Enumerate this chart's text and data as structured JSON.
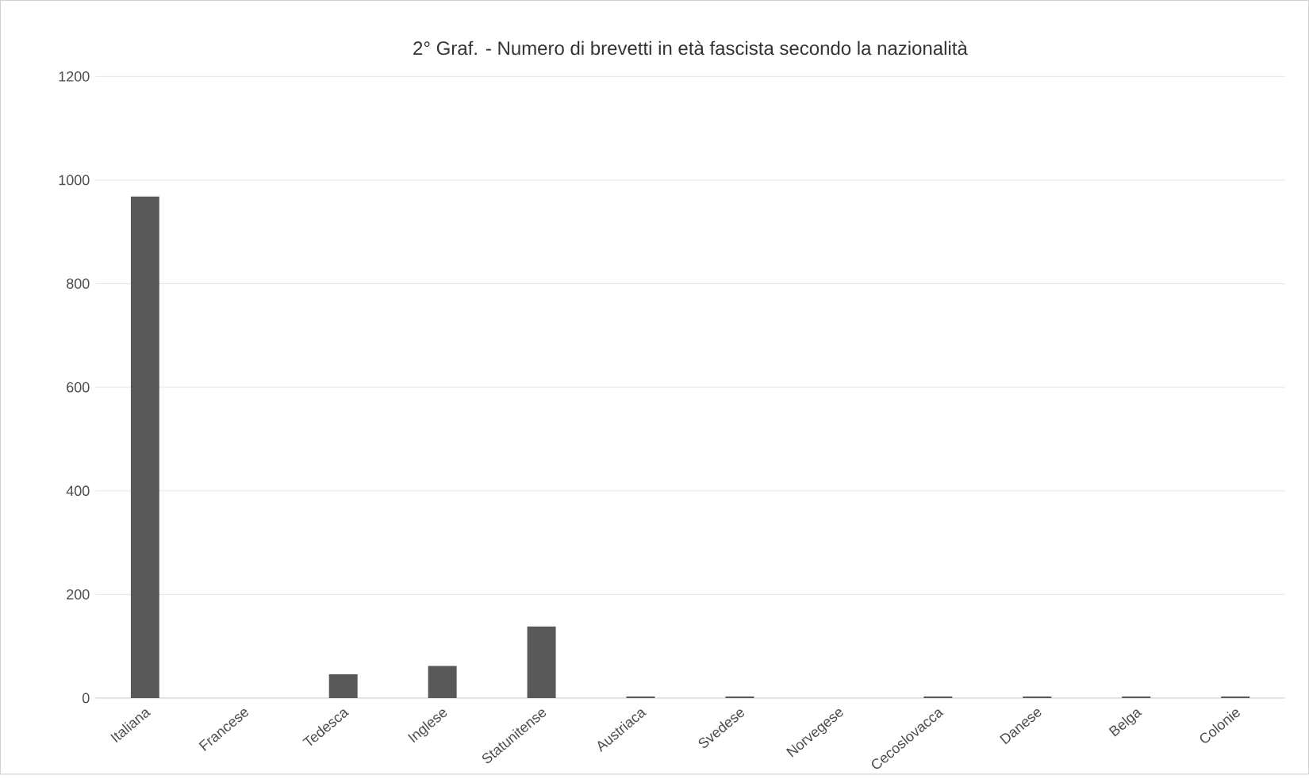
{
  "chart_data": {
    "type": "bar",
    "title": "2° Graf. - Numero di brevetti in età fascista secondo  la nazionalità",
    "categories": [
      "Italiana",
      "Francese",
      "Tedesca",
      "Inglese",
      "Statunitense",
      "Austriaca",
      "Svedese",
      "Norvegese",
      "Cecoslovacca",
      "Danese",
      "Belga",
      "Colonie"
    ],
    "values": [
      968,
      0,
      46,
      62,
      138,
      3,
      3,
      0,
      3,
      3,
      3,
      3
    ],
    "color": "#595959",
    "ylim": [
      0,
      1200
    ],
    "yticks": [
      0,
      200,
      400,
      600,
      800,
      1000,
      1200
    ],
    "grid": "y"
  }
}
